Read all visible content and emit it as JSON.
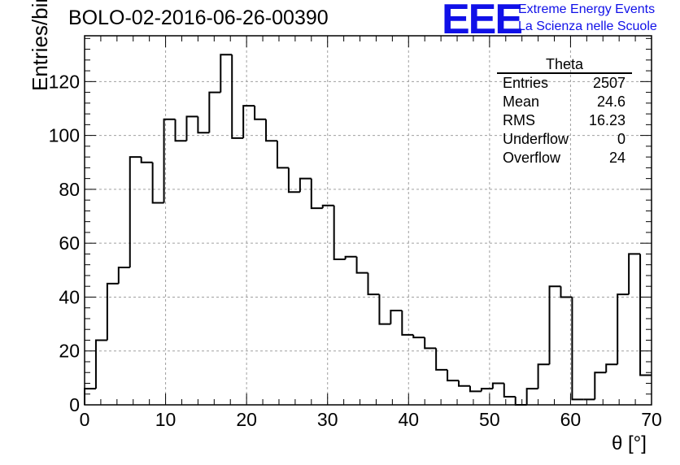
{
  "chart_data": {
    "type": "histogram",
    "title": "BOLO-02-2016-06-26-00390",
    "xlabel": "θ [°]",
    "ylabel": "Entries/bin",
    "xlim": [
      0,
      70
    ],
    "ylim": [
      0,
      137
    ],
    "xticks": [
      0,
      10,
      20,
      30,
      40,
      50,
      60,
      70
    ],
    "yticks": [
      0,
      20,
      40,
      60,
      80,
      100,
      120
    ],
    "bin_width": 1.4,
    "bin_values": [
      6,
      24,
      45,
      51,
      92,
      90,
      75,
      106,
      98,
      107,
      101,
      116,
      130,
      99,
      111,
      106,
      98,
      88,
      79,
      84,
      73,
      74,
      54,
      55,
      49,
      41,
      30,
      35,
      26,
      25,
      21,
      13,
      9,
      7,
      5,
      6,
      8,
      3,
      0,
      6,
      15,
      44,
      40,
      2,
      2,
      12,
      15,
      41,
      56,
      11
    ],
    "grid": true,
    "line_color": "#000000",
    "grid_color": "#a0a0a0",
    "stats_box": {
      "title": "Theta",
      "position": "top-right",
      "rows": [
        {
          "label": "Entries",
          "value": "2507"
        },
        {
          "label": "Mean",
          "value": "24.6"
        },
        {
          "label": "RMS",
          "value": "16.23"
        },
        {
          "label": "Underflow",
          "value": "0"
        },
        {
          "label": "Overflow",
          "value": "24"
        }
      ]
    }
  },
  "logo": {
    "mark": "EEE",
    "line1": "Extreme Energy Events",
    "line2": "La Scienza nelle Scuole",
    "color": "#1010e8"
  }
}
